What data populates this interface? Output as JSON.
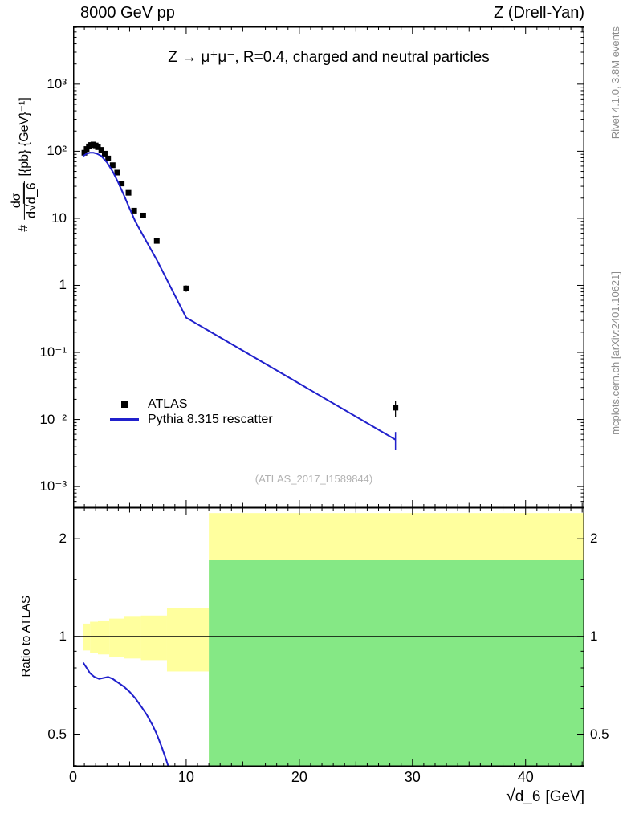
{
  "header": {
    "left": "8000 GeV pp",
    "right": "Z (Drell-Yan)"
  },
  "watermarks": {
    "rivet": "Rivet 4.1.0,  3.8M events",
    "mcplots": "mcplots.cern.ch [arXiv:2401.10621]",
    "analysis": "(ATLAS_2017_I1589844)"
  },
  "main_panel": {
    "title": "Z → μ⁺μ⁻, R=0.4, charged and neutral particles",
    "ylabel": {
      "prefix": "#",
      "num": "dσ",
      "den_prefix": "d√",
      "den_arg": "d_6",
      "units": "[{pb} {GeV}⁻¹]"
    },
    "legend": [
      {
        "label": "ATLAS",
        "marker": "square",
        "color": "#000000"
      },
      {
        "label": "Pythia 8.315 rescatter",
        "marker": "line",
        "color": "#2020cc"
      }
    ]
  },
  "ratio_panel": {
    "ylabel": "Ratio to ATLAS"
  },
  "xaxis": {
    "sqrt": "√",
    "arg": "d_6",
    "units": "[GeV]"
  },
  "chart_data": [
    {
      "type": "scatter",
      "panel": "main",
      "title": "Z → μ⁺μ⁻, R=0.4, charged and neutral particles",
      "xlabel": "√d_6 [GeV]",
      "ylabel": "# dσ/d√d_6 [{pb} {GeV}⁻¹]",
      "xlim": [
        0,
        45.2
      ],
      "ylog10_lim": [
        -3.31,
        3.86
      ],
      "grid": false,
      "legend_position": "left-middle",
      "yticks": {
        "values": [
          1000,
          100,
          10,
          1,
          0.1,
          0.01,
          0.001
        ],
        "labels": [
          "10³",
          "10²",
          "10",
          "1",
          "10⁻¹",
          "10⁻²",
          "10⁻³"
        ]
      },
      "xticks": {
        "values": [
          0,
          10,
          20,
          30,
          40
        ],
        "labels": [
          "0",
          "10",
          "20",
          "30",
          "40"
        ]
      },
      "series": [
        {
          "name": "ATLAS",
          "kind": "scatter",
          "color": "#000000",
          "x": [
            1.0,
            1.2,
            1.4,
            1.6,
            1.8,
            2.0,
            2.2,
            2.5,
            2.8,
            3.1,
            3.5,
            3.9,
            4.3,
            4.9,
            5.4,
            6.2,
            7.4,
            10.0,
            28.5
          ],
          "y": [
            95,
            108,
            118,
            124,
            126,
            122,
            115,
            105,
            92,
            78,
            62,
            48,
            33,
            24,
            13,
            11,
            4.6,
            0.9,
            0.015
          ],
          "yerr": [
            0,
            0,
            0,
            0,
            0,
            0,
            0,
            0,
            0,
            0,
            0,
            0,
            0,
            0,
            0,
            0,
            0.4,
            0.1,
            0.004
          ]
        },
        {
          "name": "Pythia 8.315 rescatter",
          "kind": "line",
          "color": "#2020cc",
          "x": [
            0.9,
            1.2,
            1.5,
            1.8,
            2.1,
            2.5,
            3.0,
            3.5,
            4.0,
            4.5,
            5.0,
            5.5,
            6.2,
            7.4,
            10.0,
            28.5
          ],
          "y": [
            85,
            92,
            95,
            95,
            92,
            85,
            68,
            50,
            34,
            22,
            14,
            9,
            5.5,
            2.4,
            0.33,
            0.005
          ],
          "yerr_last": 0.0015
        }
      ]
    },
    {
      "type": "ratio",
      "panel": "ratio",
      "ylabel": "Ratio to ATLAS",
      "xlim": [
        0,
        45.2
      ],
      "ylim": [
        0.397,
        2.5
      ],
      "ylog2": true,
      "yticks": {
        "values": [
          2,
          1,
          0.5
        ],
        "labels": [
          "2",
          "1",
          "0.5"
        ]
      },
      "yminor": [
        0.4,
        0.6,
        0.7,
        0.8,
        0.9,
        1.5
      ],
      "unity_line": 1,
      "bands": {
        "yellow_color": "#ffff9e",
        "green_color": "#85e885",
        "yellow": [
          [
            0.9,
            1.5,
            0.905,
            1.095
          ],
          [
            1.5,
            2.2,
            0.89,
            1.11
          ],
          [
            2.2,
            3.2,
            0.88,
            1.12
          ],
          [
            3.2,
            4.5,
            0.865,
            1.135
          ],
          [
            4.5,
            6.0,
            0.855,
            1.15
          ],
          [
            6.0,
            8.3,
            0.845,
            1.16
          ],
          [
            8.3,
            12.0,
            0.78,
            1.22
          ],
          [
            12.0,
            45.2,
            0.35,
            2.4
          ]
        ],
        "green": [
          [
            12.0,
            45.2,
            0.35,
            1.72
          ]
        ]
      },
      "line": {
        "name": "Pythia 8.315 rescatter",
        "color": "#2020cc",
        "x": [
          0.9,
          1.2,
          1.5,
          1.9,
          2.3,
          2.7,
          3.1,
          3.5,
          4.0,
          4.5,
          5.0,
          5.5,
          6.0,
          6.5,
          7.0,
          7.4,
          7.8,
          8.2,
          8.6
        ],
        "y": [
          0.83,
          0.8,
          0.77,
          0.75,
          0.74,
          0.745,
          0.75,
          0.74,
          0.72,
          0.7,
          0.675,
          0.645,
          0.61,
          0.575,
          0.535,
          0.5,
          0.46,
          0.42,
          0.38
        ]
      }
    }
  ]
}
